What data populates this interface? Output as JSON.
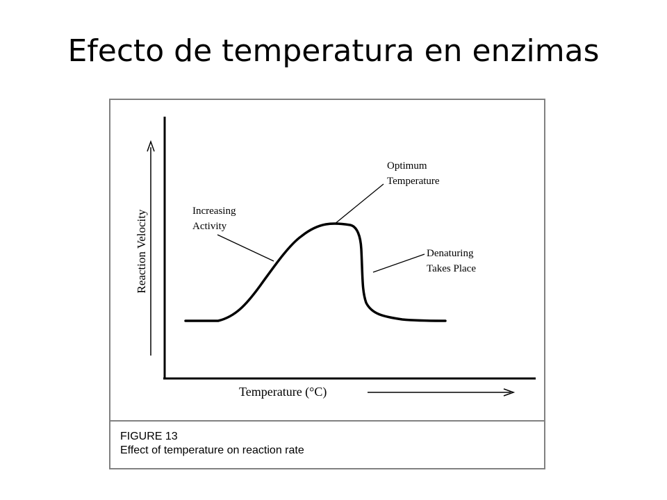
{
  "slide": {
    "title": "Efecto de temperatura en enzimas"
  },
  "figure": {
    "y_axis_label": "Reaction Velocity",
    "x_axis_label": "Temperature (°C)",
    "annotations": {
      "increasing_line1": "Increasing",
      "increasing_line2": "Activity",
      "optimum_line1": "Optimum",
      "optimum_line2": "Temperature",
      "denaturing_line1": "Denaturing",
      "denaturing_line2": "Takes Place"
    },
    "caption": {
      "number": "FIGURE 13",
      "text": "Effect of temperature on reaction rate"
    }
  },
  "colors": {
    "curve": "#000000",
    "frame": "#808080",
    "text": "#000000"
  }
}
